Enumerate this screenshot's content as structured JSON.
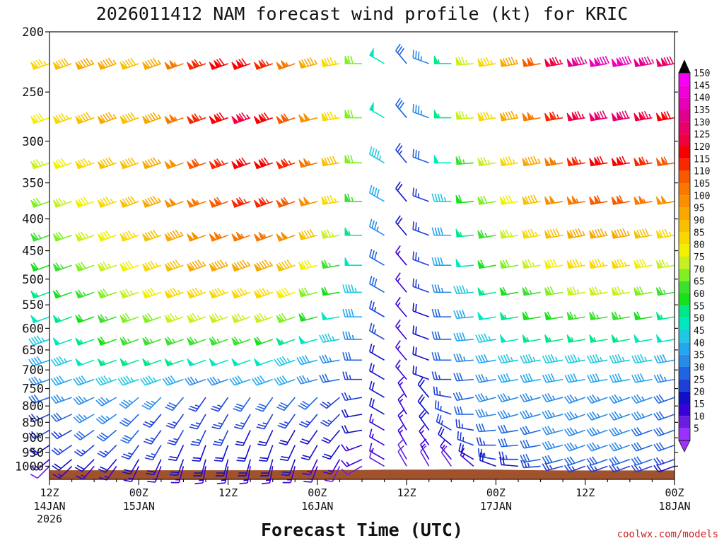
{
  "chart_data": {
    "type": "wind-barb-time-height",
    "title": "2026011412 NAM forecast wind profile (kt) for KRIC",
    "xlabel": "Forecast Time (UTC)",
    "credit": "coolwx.com/models",
    "units": "kt",
    "y_axis": {
      "quantity": "pressure (mb)",
      "scale": "log",
      "range": [
        200,
        1050
      ],
      "ticks": [
        200,
        250,
        300,
        350,
        400,
        450,
        500,
        550,
        600,
        650,
        700,
        750,
        800,
        850,
        900,
        950,
        1000
      ]
    },
    "x_axis": {
      "range_hours": [
        0,
        84
      ],
      "ticks": [
        {
          "hour": 0,
          "time": "12Z",
          "date": "14JAN",
          "year": "2026"
        },
        {
          "hour": 12,
          "time": "00Z",
          "date": "15JAN",
          "year": ""
        },
        {
          "hour": 24,
          "time": "12Z",
          "date": "",
          "year": ""
        },
        {
          "hour": 36,
          "time": "00Z",
          "date": "16JAN",
          "year": ""
        },
        {
          "hour": 48,
          "time": "12Z",
          "date": "",
          "year": ""
        },
        {
          "hour": 60,
          "time": "00Z",
          "date": "17JAN",
          "year": ""
        },
        {
          "hour": 72,
          "time": "12Z",
          "date": "",
          "year": ""
        },
        {
          "hour": 84,
          "time": "00Z",
          "date": "18JAN",
          "year": ""
        }
      ]
    },
    "colorbar": {
      "levels": [
        5,
        10,
        15,
        20,
        25,
        30,
        35,
        40,
        45,
        50,
        55,
        60,
        65,
        70,
        75,
        80,
        85,
        90,
        95,
        100,
        105,
        110,
        115,
        120,
        125,
        130,
        135,
        140,
        145,
        150
      ],
      "colors": [
        "#9b30ff",
        "#6a1fe0",
        "#3a00d8",
        "#1010c8",
        "#1e3fd8",
        "#1f64e0",
        "#2a8ae8",
        "#22a8f0",
        "#1fc8e0",
        "#00e8c0",
        "#00e88a",
        "#18e01a",
        "#3ce030",
        "#80f020",
        "#c8f020",
        "#f0f000",
        "#f8d800",
        "#f8c000",
        "#f8a800",
        "#f89000",
        "#f87800",
        "#f85a00",
        "#f82800",
        "#f80000",
        "#f00040",
        "#e8006a",
        "#e00090",
        "#e800b8",
        "#f000d8",
        "#f800f8"
      ],
      "over_color": "#000000"
    },
    "terrain": {
      "color": "#a0522d",
      "surface_pressure_mb": [
        1015,
        1015,
        1015,
        1015,
        1015,
        1015,
        1015,
        1015,
        1015,
        1015,
        1015,
        1015,
        1014,
        1014,
        1014,
        1013,
        1013,
        1013,
        1012,
        1012,
        1013,
        1014,
        1015,
        1016,
        1016,
        1016,
        1016,
        1016,
        1016
      ]
    },
    "pressure_levels": [
      225,
      275,
      325,
      375,
      425,
      475,
      525,
      575,
      625,
      675,
      725,
      775,
      825,
      875,
      925,
      975,
      1000
    ],
    "barb_times_hours": [
      0,
      3,
      6,
      9,
      12,
      15,
      18,
      21,
      24,
      27,
      30,
      33,
      36,
      39,
      42,
      45,
      48,
      51,
      54,
      57,
      60,
      63,
      66,
      69,
      72,
      75,
      78,
      81,
      84
    ],
    "upper_speed_kt": [
      [
        85,
        90,
        95,
        95,
        90,
        95,
        105,
        115,
        120,
        120,
        115,
        105,
        95,
        85,
        70,
        50,
        30,
        35,
        55,
        75,
        85,
        95,
        110,
        125,
        135,
        140,
        140,
        135,
        130
      ],
      [
        80,
        85,
        90,
        95,
        90,
        95,
        105,
        115,
        120,
        125,
        120,
        110,
        100,
        85,
        70,
        50,
        30,
        35,
        55,
        75,
        85,
        95,
        105,
        115,
        125,
        130,
        130,
        125,
        120
      ],
      [
        75,
        80,
        85,
        90,
        90,
        95,
        100,
        110,
        115,
        120,
        120,
        115,
        105,
        90,
        70,
        45,
        25,
        30,
        50,
        65,
        75,
        85,
        95,
        105,
        115,
        120,
        120,
        115,
        110
      ],
      [
        70,
        75,
        80,
        85,
        90,
        95,
        100,
        105,
        110,
        115,
        115,
        110,
        100,
        85,
        65,
        40,
        20,
        25,
        45,
        60,
        70,
        80,
        90,
        100,
        105,
        110,
        110,
        105,
        100
      ],
      [
        65,
        70,
        75,
        80,
        85,
        90,
        95,
        100,
        105,
        105,
        105,
        100,
        90,
        75,
        55,
        35,
        20,
        25,
        40,
        55,
        65,
        75,
        85,
        90,
        95,
        95,
        95,
        90,
        85
      ],
      [
        60,
        65,
        70,
        75,
        80,
        85,
        90,
        95,
        95,
        95,
        95,
        90,
        80,
        65,
        50,
        30,
        15,
        25,
        40,
        50,
        60,
        70,
        75,
        80,
        85,
        85,
        85,
        80,
        75
      ],
      [
        55,
        60,
        65,
        70,
        75,
        80,
        85,
        85,
        85,
        85,
        85,
        80,
        70,
        60,
        45,
        30,
        15,
        25,
        35,
        45,
        55,
        60,
        65,
        70,
        75,
        75,
        75,
        70,
        65
      ],
      [
        50,
        55,
        60,
        65,
        70,
        70,
        75,
        75,
        75,
        75,
        75,
        70,
        60,
        50,
        40,
        25,
        15,
        20,
        30,
        40,
        50,
        55,
        60,
        60,
        65,
        65,
        65,
        60,
        55
      ],
      [
        45,
        50,
        55,
        60,
        65,
        65,
        65,
        65,
        65,
        65,
        60,
        55,
        50,
        45,
        35,
        25,
        15,
        20,
        30,
        40,
        45,
        50,
        55,
        55,
        55,
        55,
        55,
        50,
        50
      ],
      [
        40,
        45,
        50,
        55,
        55,
        55,
        55,
        50,
        50,
        50,
        50,
        45,
        40,
        35,
        30,
        20,
        15,
        20,
        30,
        35,
        40,
        45,
        45,
        45,
        45,
        45,
        45,
        45,
        40
      ],
      [
        35,
        40,
        40,
        45,
        45,
        45,
        40,
        35,
        35,
        40,
        40,
        40,
        35,
        30,
        25,
        20,
        15,
        20,
        25,
        30,
        35,
        40,
        40,
        40,
        40,
        40,
        40,
        40,
        35
      ]
    ],
    "upper_dir_deg": [
      250,
      250,
      250,
      250,
      250,
      250,
      250,
      250,
      250,
      250,
      250,
      250,
      255,
      260,
      270,
      300,
      320,
      290,
      270,
      265,
      260,
      260,
      260,
      260,
      260,
      260,
      260,
      260,
      260
    ],
    "lower_speed_kt": [
      [
        30,
        35,
        35,
        35,
        35,
        35,
        30,
        25,
        25,
        30,
        30,
        30,
        30,
        25,
        25,
        20,
        15,
        20,
        25,
        30,
        35,
        35,
        35,
        35,
        35,
        35,
        35,
        35,
        30
      ],
      [
        25,
        30,
        35,
        35,
        30,
        25,
        25,
        25,
        25,
        25,
        25,
        25,
        25,
        25,
        20,
        20,
        15,
        20,
        25,
        30,
        35,
        35,
        35,
        35,
        35,
        35,
        35,
        35,
        30
      ],
      [
        25,
        25,
        30,
        30,
        30,
        25,
        25,
        25,
        25,
        20,
        20,
        20,
        20,
        20,
        20,
        15,
        15,
        20,
        25,
        25,
        30,
        30,
        30,
        35,
        35,
        35,
        35,
        30,
        30
      ],
      [
        20,
        25,
        25,
        25,
        25,
        25,
        20,
        20,
        20,
        20,
        20,
        20,
        20,
        20,
        15,
        15,
        15,
        15,
        20,
        25,
        25,
        30,
        30,
        35,
        35,
        35,
        35,
        30,
        30
      ],
      [
        15,
        20,
        20,
        20,
        20,
        20,
        20,
        20,
        20,
        20,
        20,
        20,
        15,
        15,
        15,
        15,
        10,
        15,
        15,
        20,
        25,
        25,
        30,
        30,
        30,
        30,
        30,
        30,
        25
      ],
      [
        10,
        15,
        15,
        15,
        15,
        15,
        15,
        15,
        15,
        15,
        15,
        15,
        15,
        10,
        10,
        10,
        10,
        10,
        10,
        15,
        20,
        20,
        25,
        25,
        25,
        25,
        25,
        25,
        20
      ]
    ],
    "lower_dir_deg": [
      [
        250,
        250,
        245,
        240,
        230,
        225,
        220,
        215,
        215,
        215,
        215,
        220,
        225,
        230,
        260,
        300,
        330,
        320,
        280,
        260,
        255,
        255,
        255,
        255,
        250,
        250,
        250,
        250,
        250
      ],
      [
        245,
        245,
        240,
        235,
        225,
        220,
        215,
        210,
        210,
        210,
        210,
        215,
        220,
        225,
        260,
        300,
        330,
        320,
        290,
        270,
        260,
        255,
        255,
        255,
        250,
        250,
        250,
        250,
        250
      ],
      [
        240,
        240,
        235,
        230,
        220,
        215,
        210,
        205,
        205,
        205,
        205,
        210,
        215,
        220,
        260,
        300,
        330,
        325,
        300,
        280,
        265,
        260,
        255,
        255,
        250,
        250,
        250,
        250,
        250
      ],
      [
        235,
        235,
        230,
        225,
        215,
        210,
        205,
        200,
        200,
        200,
        200,
        205,
        210,
        215,
        250,
        300,
        330,
        325,
        310,
        290,
        270,
        265,
        260,
        255,
        250,
        250,
        250,
        250,
        250
      ],
      [
        230,
        230,
        225,
        220,
        210,
        205,
        200,
        195,
        195,
        195,
        195,
        200,
        205,
        210,
        245,
        300,
        330,
        330,
        320,
        300,
        280,
        270,
        260,
        255,
        250,
        250,
        250,
        250,
        250
      ],
      [
        225,
        225,
        220,
        215,
        205,
        200,
        195,
        190,
        190,
        190,
        190,
        195,
        200,
        205,
        240,
        300,
        330,
        330,
        325,
        310,
        290,
        275,
        265,
        255,
        250,
        250,
        250,
        250,
        250
      ]
    ]
  }
}
